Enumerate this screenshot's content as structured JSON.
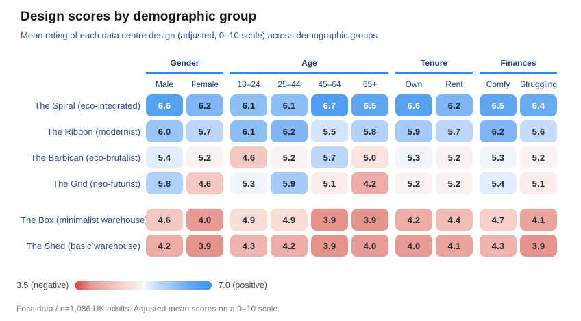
{
  "header": {
    "title": "Design scores by demographic group",
    "subtitle": "Mean rating of each data centre design (adjusted, 0–10 scale) across demographic groups"
  },
  "chart_data": {
    "type": "heatmap",
    "column_groups": [
      {
        "label": "Gender",
        "columns": [
          "Male",
          "Female"
        ]
      },
      {
        "label": "Age",
        "columns": [
          "18–24",
          "25–44",
          "45–64",
          "65+"
        ]
      },
      {
        "label": "Tenure",
        "columns": [
          "Own",
          "Rent"
        ]
      },
      {
        "label": "Finances",
        "columns": [
          "Comfy",
          "Struggling"
        ]
      }
    ],
    "rows": [
      {
        "label": "The Spiral (eco-integrated)",
        "values": [
          6.6,
          6.2,
          6.1,
          6.1,
          6.7,
          6.5,
          6.6,
          6.2,
          6.5,
          6.4
        ],
        "separated": false
      },
      {
        "label": "The Ribbon (modernist)",
        "values": [
          6.0,
          5.7,
          6.1,
          6.2,
          5.5,
          5.8,
          5.9,
          5.7,
          6.2,
          5.6
        ],
        "separated": false
      },
      {
        "label": "The Barbican (eco-brutalist)",
        "values": [
          5.4,
          5.2,
          4.6,
          5.2,
          5.7,
          5.0,
          5.3,
          5.2,
          5.3,
          5.2
        ],
        "separated": false
      },
      {
        "label": "The Grid (neo-futurist)",
        "values": [
          5.8,
          4.6,
          5.3,
          5.9,
          5.1,
          4.2,
          5.2,
          5.2,
          5.4,
          5.1
        ],
        "separated": false
      },
      {
        "label": "The Box (minimalist warehouse)",
        "values": [
          4.6,
          4.0,
          4.9,
          4.9,
          3.9,
          3.9,
          4.2,
          4.4,
          4.7,
          4.1
        ],
        "separated": true
      },
      {
        "label": "The Shed (basic warehouse)",
        "values": [
          4.2,
          3.9,
          4.3,
          4.2,
          3.9,
          4.0,
          4.0,
          4.1,
          4.3,
          3.9
        ],
        "separated": false
      }
    ],
    "scale": {
      "min": 3.5,
      "mid": 5.25,
      "max": 7.0
    },
    "white_text_threshold": 6.4,
    "color_scale": [
      {
        "v": 3.5,
        "c": "#d2423a"
      },
      {
        "v": 3.9,
        "c": "#e6938c"
      },
      {
        "v": 4.4,
        "c": "#f2bcb6"
      },
      {
        "v": 4.9,
        "c": "#f8ddd9"
      },
      {
        "v": 5.2,
        "c": "#faf3f1"
      },
      {
        "v": 5.25,
        "c": "#ffffff"
      },
      {
        "v": 5.3,
        "c": "#f1f6fd"
      },
      {
        "v": 5.6,
        "c": "#c6dcfa"
      },
      {
        "v": 6.0,
        "c": "#9bc5f7"
      },
      {
        "v": 6.2,
        "c": "#80b6f5"
      },
      {
        "v": 6.5,
        "c": "#5ea5f2"
      },
      {
        "v": 7.0,
        "c": "#3d92f0"
      }
    ],
    "legend": {
      "min_label": "3.5 (negative)",
      "max_label": "7.0 (positive)"
    }
  },
  "footer": {
    "source": "Focaldata / n=1,086 UK adults. Adjusted mean scores on a 0–10 scale."
  },
  "colors": {
    "accent_line": "#2e86f0",
    "title_text": "#15161c",
    "subtitle_text": "#2d4fa3",
    "column_header_text": "#1f3e7c",
    "row_label_text": "#2b4c9e",
    "cell_text_dark": "#23272e",
    "cell_text_light": "#ffffff",
    "legend_text": "#454b56",
    "footer_text": "#757b88"
  }
}
